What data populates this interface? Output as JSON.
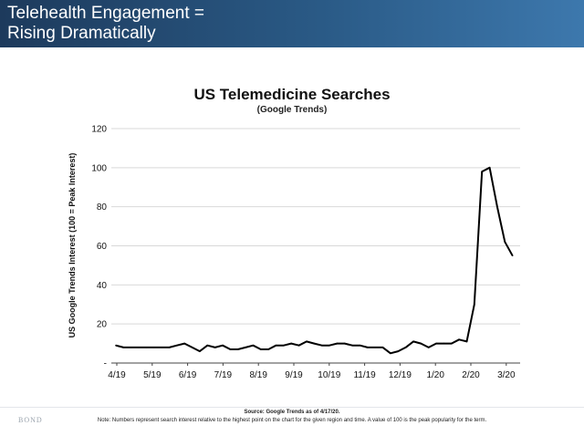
{
  "header": {
    "title_line1": "Telehealth Engagement =",
    "title_line2": "Rising Dramatically"
  },
  "brand": "BOND",
  "footer": {
    "source": "Source: Google Trends as of 4/17/20.",
    "note": "Note: Numbers represent search interest relative to the highest point on the chart for the given region and time. A value of 100 is the peak popularity for the term."
  },
  "colors": {
    "header_start": "#1d3a5c",
    "header_end": "#3d78ad",
    "line": "#000000"
  },
  "chart_data": {
    "type": "line",
    "title": "US Telemedicine Searches",
    "subtitle": "(Google Trends)",
    "ylabel": "US Google Trends Interest (100 = Peak Interest)",
    "ylim": [
      0,
      120
    ],
    "yticks": [
      0,
      20,
      40,
      60,
      80,
      100,
      120
    ],
    "x_tick_labels": [
      "4/19",
      "5/19",
      "6/19",
      "7/19",
      "8/19",
      "9/19",
      "10/19",
      "11/19",
      "12/19",
      "1/20",
      "2/20",
      "3/20"
    ],
    "grid": true,
    "series": [
      {
        "values": [
          9,
          8,
          8,
          8,
          8,
          8,
          8,
          8,
          9,
          10,
          8,
          6,
          9,
          8,
          9,
          7,
          7,
          8,
          9,
          7,
          7,
          9,
          9,
          10,
          9,
          11,
          10,
          9,
          9,
          10,
          10,
          9,
          9,
          8,
          8,
          8,
          5,
          6,
          8,
          11,
          10,
          8,
          10,
          10,
          10,
          12,
          11,
          30,
          98,
          100,
          80,
          62,
          55
        ]
      }
    ]
  }
}
